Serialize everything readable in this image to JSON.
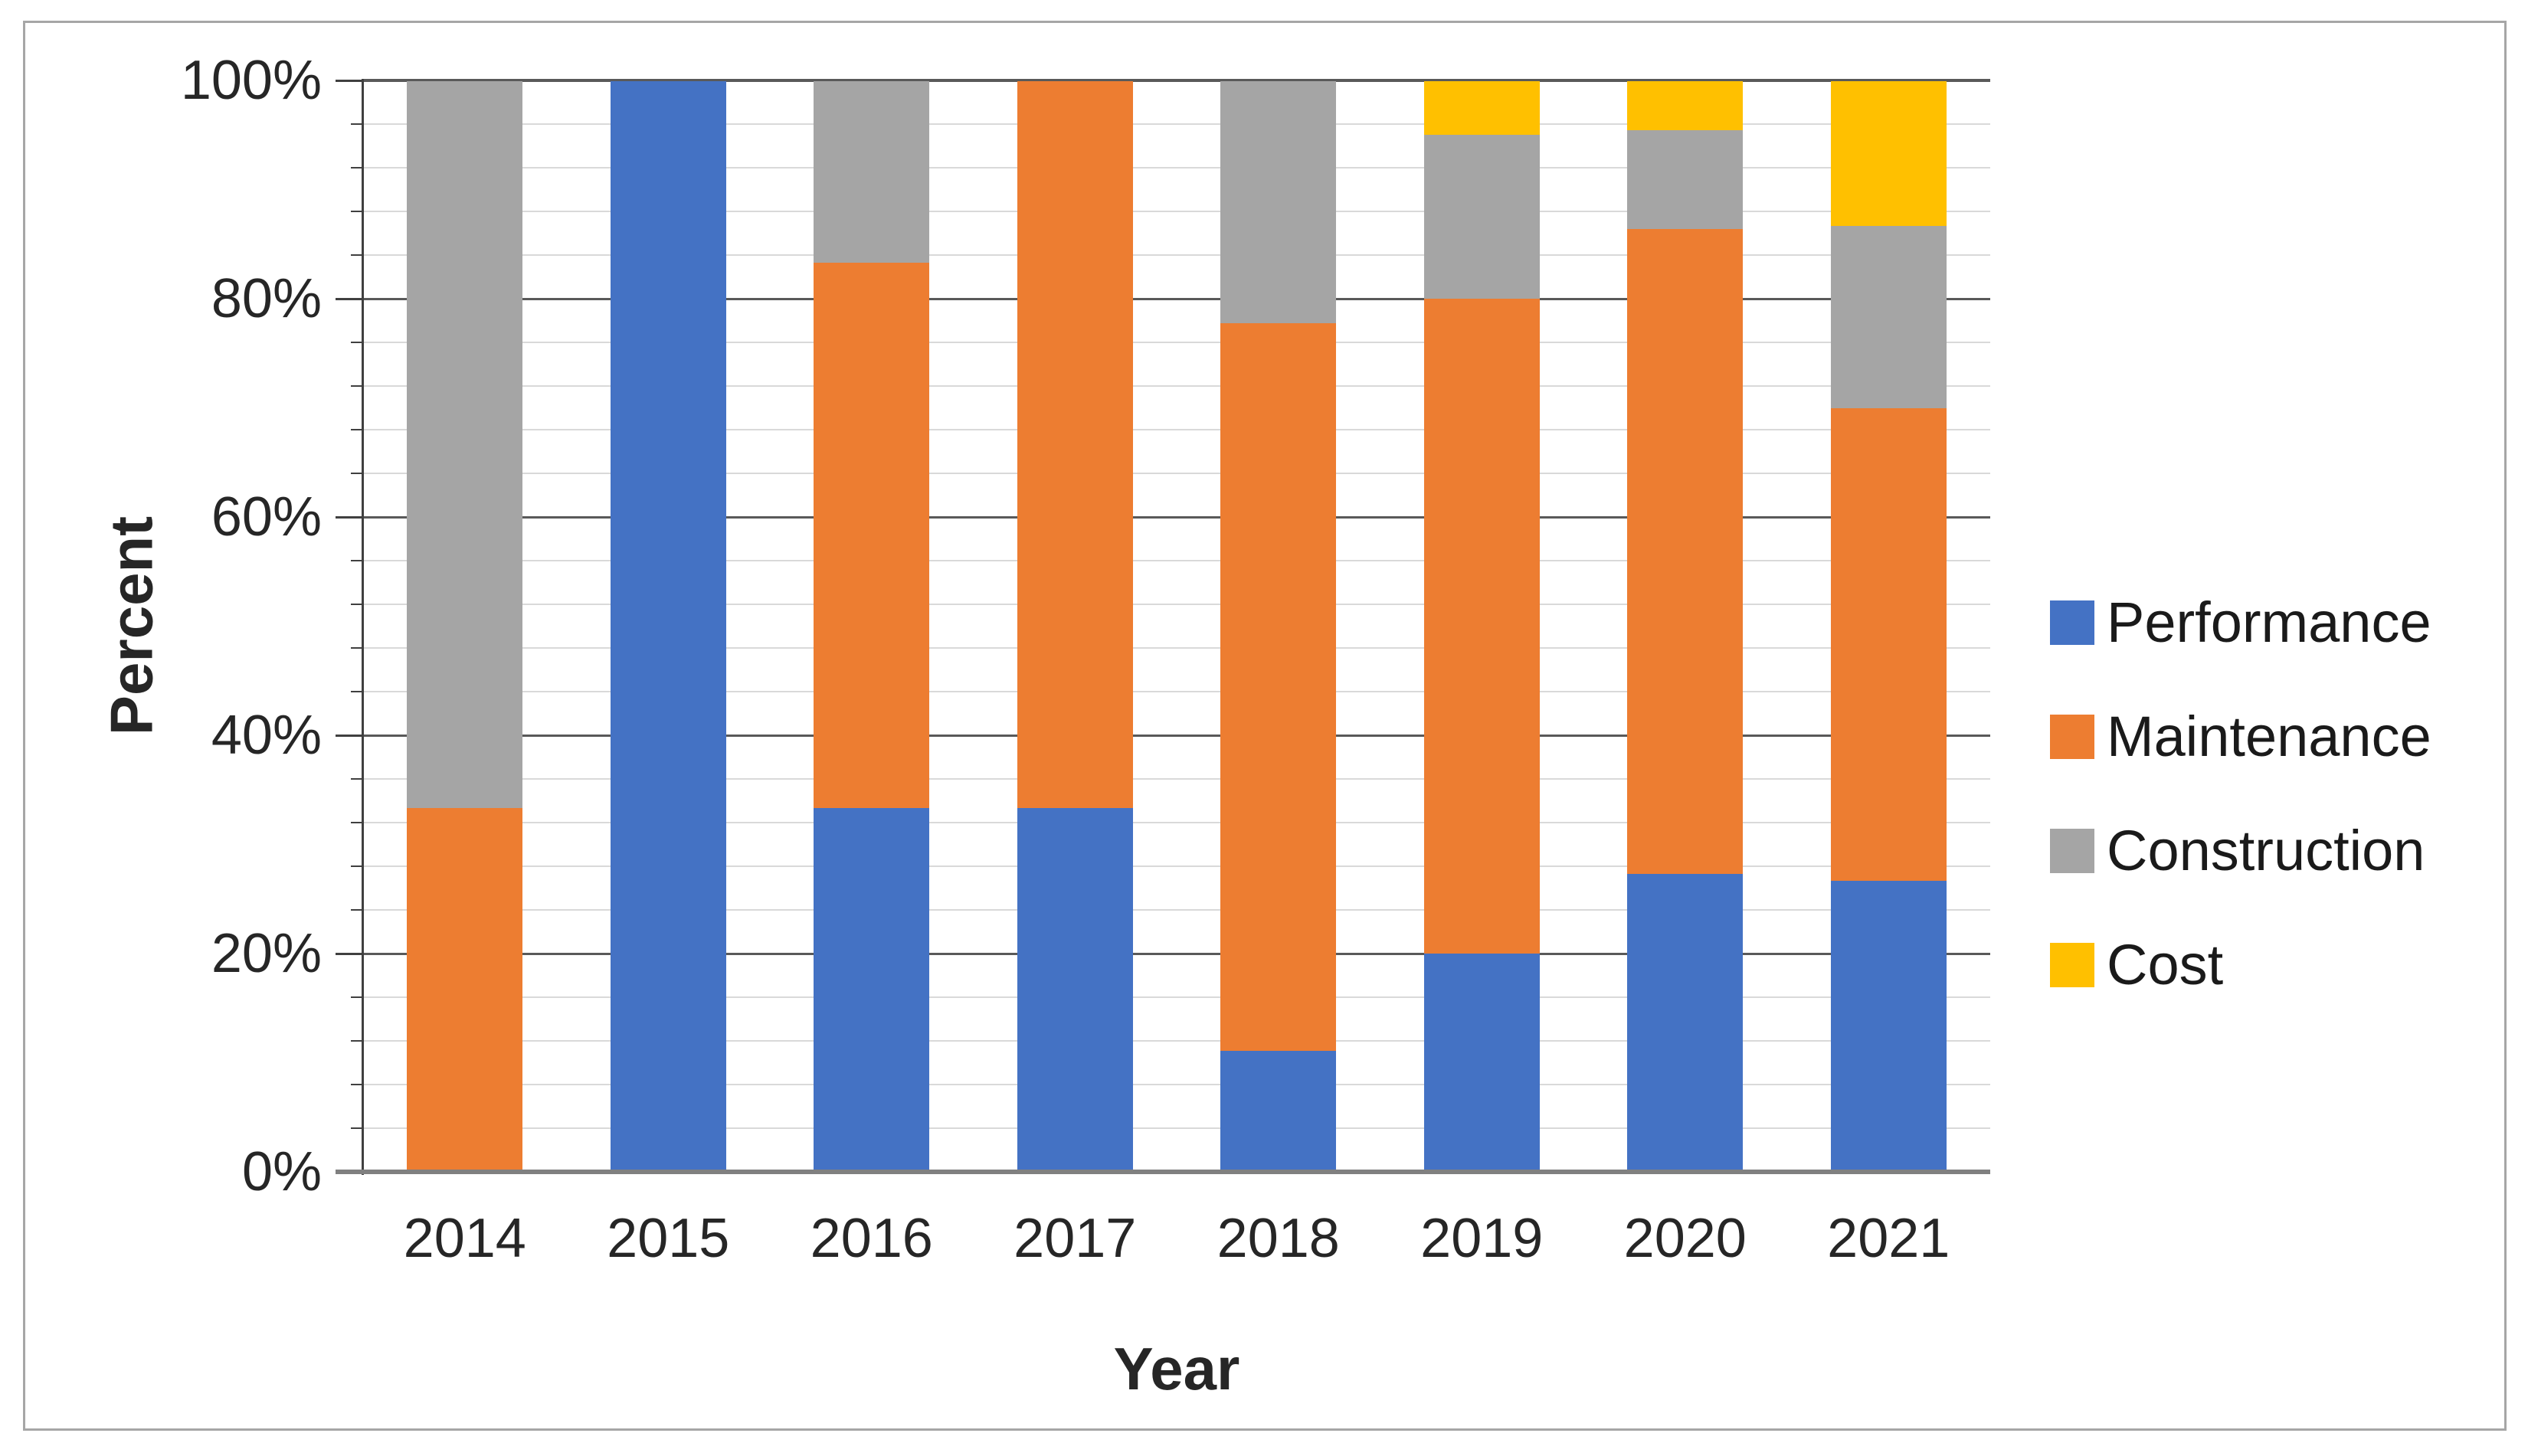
{
  "chart_data": {
    "type": "bar",
    "stacked": true,
    "stacked_mode": "percent",
    "title": "",
    "xlabel": "Year",
    "ylabel": "Percent",
    "categories": [
      "2014",
      "2015",
      "2016",
      "2017",
      "2018",
      "2019",
      "2020",
      "2021"
    ],
    "series": [
      {
        "name": "Performance",
        "color": "#4472C4",
        "values": [
          0,
          100,
          33.33,
          33.33,
          11.11,
          20,
          27.27,
          26.67
        ]
      },
      {
        "name": "Maintenance",
        "color": "#ED7D31",
        "values": [
          33.33,
          0,
          50,
          66.67,
          66.67,
          60,
          59.09,
          43.33
        ]
      },
      {
        "name": "Construction",
        "color": "#A5A5A5",
        "values": [
          66.67,
          0,
          16.67,
          0,
          22.22,
          15,
          9.09,
          16.67
        ]
      },
      {
        "name": "Cost",
        "color": "#FFC000",
        "values": [
          0,
          0,
          0,
          0,
          0,
          5,
          4.55,
          13.33
        ]
      }
    ],
    "y_axis": {
      "min": 0,
      "max": 100,
      "major_unit": 20,
      "minor_unit": 4,
      "tick_labels": [
        "100%",
        "80%",
        "60%",
        "40%",
        "20%",
        "0%"
      ]
    },
    "legend_position": "right",
    "grid": {
      "major_color": "#595959",
      "minor_color": "#D9D9D9",
      "axis_color": "#404040",
      "baseline_color": "#808080"
    }
  },
  "frame": {
    "border_color": "#A6A6A6",
    "background": "#FFFFFF"
  }
}
